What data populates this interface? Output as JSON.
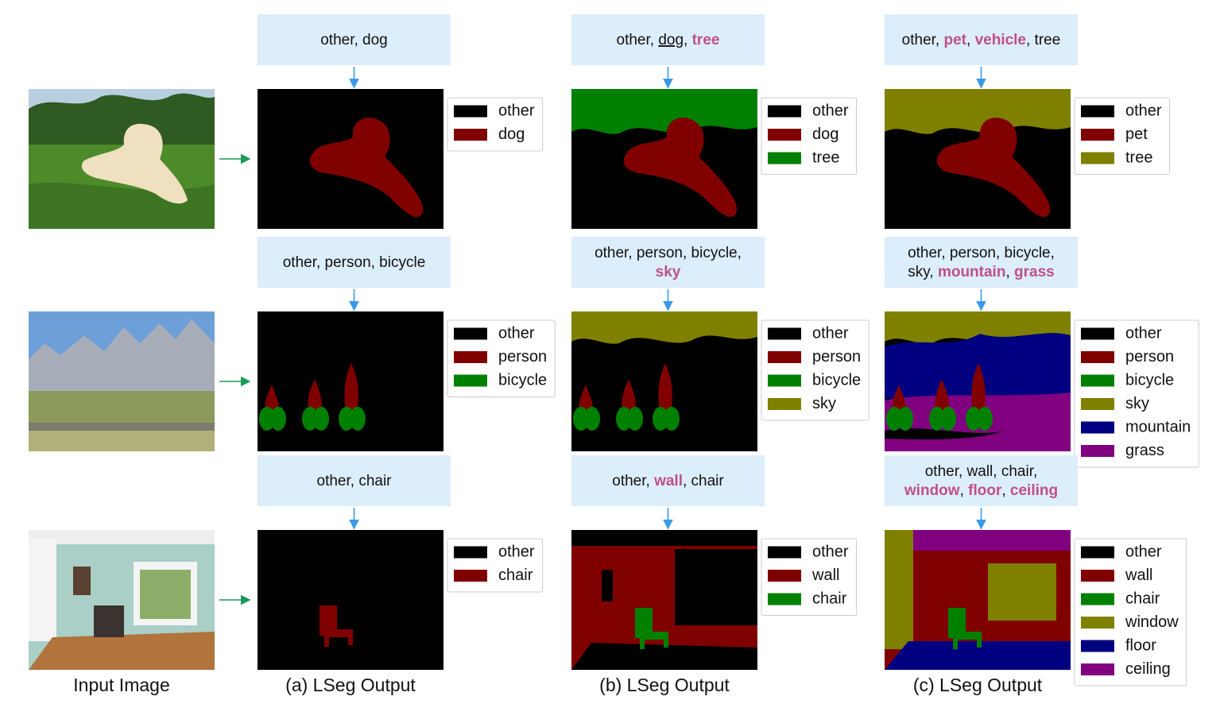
{
  "captions": [
    "Input Image",
    "(a) LSeg Output",
    "(b) LSeg Output",
    "(c) LSeg Output"
  ],
  "rows": [
    {
      "panels": [
        {
          "prompt": [
            [
              {
                "text": "other, dog"
              }
            ]
          ],
          "legend": [
            {
              "label": "other",
              "color": "#000000"
            },
            {
              "label": "dog",
              "color": "#800000"
            }
          ]
        },
        {
          "prompt": [
            [
              {
                "text": "other, "
              },
              {
                "text": "dog",
                "style": "underline"
              },
              {
                "text": ", "
              },
              {
                "text": "tree",
                "style": "highlight"
              }
            ]
          ],
          "legend": [
            {
              "label": "other",
              "color": "#000000"
            },
            {
              "label": "dog",
              "color": "#800000"
            },
            {
              "label": "tree",
              "color": "#008000"
            }
          ]
        },
        {
          "prompt": [
            [
              {
                "text": "other, "
              },
              {
                "text": "pet",
                "style": "highlight"
              },
              {
                "text": ", "
              },
              {
                "text": "vehicle",
                "style": "highlight"
              },
              {
                "text": ", tree"
              }
            ]
          ],
          "legend": [
            {
              "label": "other",
              "color": "#000000"
            },
            {
              "label": "pet",
              "color": "#800000"
            },
            {
              "label": "tree",
              "color": "#808000"
            }
          ]
        }
      ]
    },
    {
      "panels": [
        {
          "prompt": [
            [
              {
                "text": "other, person, bicycle"
              }
            ]
          ],
          "legend": [
            {
              "label": "other",
              "color": "#000000"
            },
            {
              "label": "person",
              "color": "#800000"
            },
            {
              "label": "bicycle",
              "color": "#008000"
            }
          ]
        },
        {
          "prompt": [
            [
              {
                "text": "other, person, bicycle,"
              }
            ],
            [
              {
                "text": "sky",
                "style": "highlight"
              }
            ]
          ],
          "legend": [
            {
              "label": "other",
              "color": "#000000"
            },
            {
              "label": "person",
              "color": "#800000"
            },
            {
              "label": "bicycle",
              "color": "#008000"
            },
            {
              "label": "sky",
              "color": "#808000"
            }
          ]
        },
        {
          "prompt": [
            [
              {
                "text": "other, person, bicycle,"
              }
            ],
            [
              {
                "text": "sky, "
              },
              {
                "text": "mountain",
                "style": "highlight"
              },
              {
                "text": ", "
              },
              {
                "text": "grass",
                "style": "highlight"
              }
            ]
          ],
          "legend": [
            {
              "label": "other",
              "color": "#000000"
            },
            {
              "label": "person",
              "color": "#800000"
            },
            {
              "label": "bicycle",
              "color": "#008000"
            },
            {
              "label": "sky",
              "color": "#808000"
            },
            {
              "label": "mountain",
              "color": "#000080"
            },
            {
              "label": "grass",
              "color": "#800080"
            }
          ]
        }
      ]
    },
    {
      "panels": [
        {
          "prompt": [
            [
              {
                "text": "other, chair"
              }
            ]
          ],
          "legend": [
            {
              "label": "other",
              "color": "#000000"
            },
            {
              "label": "chair",
              "color": "#800000"
            }
          ]
        },
        {
          "prompt": [
            [
              {
                "text": "other, "
              },
              {
                "text": "wall",
                "style": "highlight"
              },
              {
                "text": ", chair"
              }
            ]
          ],
          "legend": [
            {
              "label": "other",
              "color": "#000000"
            },
            {
              "label": "wall",
              "color": "#800000"
            },
            {
              "label": "chair",
              "color": "#008000"
            }
          ]
        },
        {
          "prompt": [
            [
              {
                "text": "other, wall, chair,"
              }
            ],
            [
              {
                "text": "window",
                "style": "highlight"
              },
              {
                "text": ", "
              },
              {
                "text": "floor",
                "style": "highlight"
              },
              {
                "text": ", "
              },
              {
                "text": "ceiling",
                "style": "highlight"
              }
            ]
          ],
          "legend": [
            {
              "label": "other",
              "color": "#000000"
            },
            {
              "label": "wall",
              "color": "#800000"
            },
            {
              "label": "chair",
              "color": "#008000"
            },
            {
              "label": "window",
              "color": "#808000"
            },
            {
              "label": "floor",
              "color": "#000080"
            },
            {
              "label": "ceiling",
              "color": "#800080"
            }
          ]
        }
      ]
    }
  ]
}
